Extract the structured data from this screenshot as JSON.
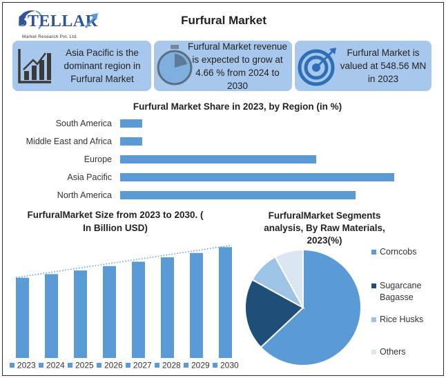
{
  "header": {
    "logo_name": "STELLAR",
    "logo_subtitle": "Market Research Pvt. Ltd.",
    "title": "Furfural Market"
  },
  "info_boxes": [
    {
      "icon": "bar-chart-icon",
      "lines": [
        "Asia Pacific is the",
        "dominant region in",
        "Furfural Market"
      ]
    },
    {
      "icon": "stopwatch-icon",
      "lines": [
        "Furfural Market revenue",
        "is expected to grow at",
        "4.66 % from 2024 to 2030"
      ]
    },
    {
      "icon": "target-icon",
      "lines": [
        "Furfural Market is",
        "valued at 548.56 MN",
        "in 2023"
      ]
    }
  ],
  "colors": {
    "info_box": "#a8c7ec",
    "bar": "#5b9bd5",
    "icon_dark": "#3a3a3a",
    "icon_blue": "#2e6fb8"
  },
  "chart_data": [
    {
      "type": "bar",
      "orientation": "horizontal",
      "title": "Furfural Market Share in 2023, by Region (in %)",
      "categories": [
        "South America",
        "Middle East and Africa",
        "Europe",
        "Asia Pacific",
        "North America"
      ],
      "values": [
        5,
        5,
        45,
        63,
        54
      ],
      "xlim": [
        0,
        65
      ],
      "grid": false,
      "legend": "none"
    },
    {
      "type": "bar",
      "title_lines": [
        "FurfuralMarket Size from 2023 to 2030. (",
        "In Billion  USD)"
      ],
      "categories": [
        "2023",
        "2024",
        "2025",
        "2026",
        "2027",
        "2028",
        "2029",
        "2030"
      ],
      "values": [
        0.55,
        0.575,
        0.6,
        0.63,
        0.66,
        0.69,
        0.72,
        0.76
      ],
      "ylim": [
        0,
        0.78
      ],
      "trendline": "dotted linear",
      "grid": false,
      "legend": "bottom"
    },
    {
      "type": "pie",
      "title_lines": [
        "FurfuralMarket Segments",
        "analysis, By Raw Materials,",
        "2023(%)"
      ],
      "labels": [
        "Corncobs",
        "Sugarcane Bagasse",
        "Rice Husks",
        "Others"
      ],
      "legend_lines": [
        [
          "Corncobs"
        ],
        [
          "Sugarcane",
          "Bagasse"
        ],
        [
          "Rice Husks"
        ],
        [
          "Others"
        ]
      ],
      "values": [
        63,
        20,
        9,
        8
      ],
      "colors": [
        "#5b9bd5",
        "#1f4e79",
        "#9dc3e6",
        "#dae6f2"
      ],
      "legend": "right"
    }
  ]
}
